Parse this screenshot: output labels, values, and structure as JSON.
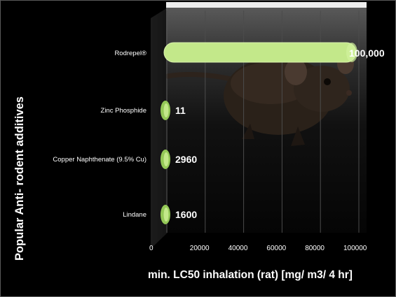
{
  "chart_data": {
    "type": "bar",
    "orientation": "horizontal",
    "categories": [
      "Rodrepel®",
      "Zinc Phosphide",
      "Copper Naphthenate (9.5% Cu)",
      "Lindane"
    ],
    "values": [
      100000,
      11,
      2960,
      1600
    ],
    "data_labels": [
      "100,000",
      "11",
      "2960",
      "1600"
    ],
    "x_ticks": [
      "0",
      "20000",
      "40000",
      "60000",
      "80000",
      "100000"
    ],
    "xlim": [
      0,
      100000
    ],
    "xlabel": "min. LC50 inhalation (rat) [mg/ m3/ 4 hr]",
    "ylabel": "Popular Anti- rodent additives",
    "grid": true,
    "bar_color": "#c3e88a",
    "background": "#000000",
    "text_color": "#ffffff"
  }
}
